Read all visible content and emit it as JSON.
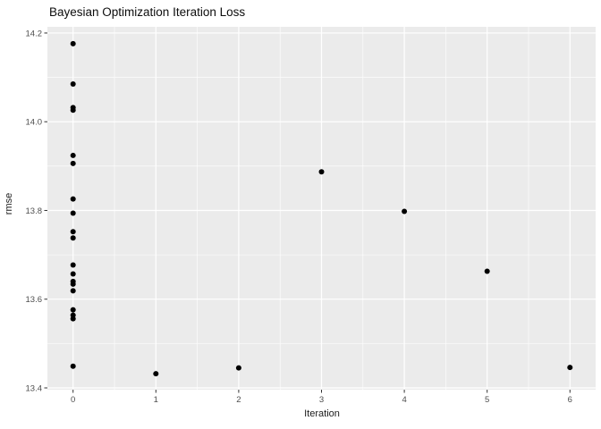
{
  "window": {
    "title": "Bayesian Optimization Iteration Loss"
  },
  "colors": {
    "background": "#ffffff",
    "panel_bg": "#ebebeb",
    "grid_major": "#ffffff",
    "grid_minor": "#ffffff",
    "point": "#000000",
    "tick_mark": "#333333",
    "tick_label": "#4d4d4d",
    "title": "#0d0d0d",
    "axis_title": "#1a1a1a"
  },
  "chart_data": {
    "type": "scatter",
    "title": "Bayesian Optimization Iteration Loss",
    "xlabel": "Iteration",
    "ylabel": "rmse",
    "xlim": [
      -0.31,
      6.31
    ],
    "ylim": [
      13.396,
      14.214
    ],
    "grid": true,
    "legend": "none",
    "x_ticks": [
      0,
      1,
      2,
      3,
      4,
      5,
      6
    ],
    "x_tick_labels": [
      "0",
      "1",
      "2",
      "3",
      "4",
      "5",
      "6"
    ],
    "x_minor_ticks": [
      0.5,
      1.5,
      2.5,
      3.5,
      4.5,
      5.5
    ],
    "y_ticks": [
      13.4,
      13.6,
      13.8,
      14.0,
      14.2
    ],
    "y_tick_labels": [
      "13.4",
      "13.6",
      "13.8",
      "14.0",
      "14.2"
    ],
    "y_minor_ticks": [
      13.5,
      13.7,
      13.9,
      14.1
    ],
    "points": [
      {
        "x": 0,
        "y": 14.176
      },
      {
        "x": 0,
        "y": 14.085
      },
      {
        "x": 0,
        "y": 14.032
      },
      {
        "x": 0,
        "y": 14.026
      },
      {
        "x": 0,
        "y": 13.924
      },
      {
        "x": 0,
        "y": 13.906
      },
      {
        "x": 0,
        "y": 13.826
      },
      {
        "x": 0,
        "y": 13.794
      },
      {
        "x": 0,
        "y": 13.752
      },
      {
        "x": 0,
        "y": 13.738
      },
      {
        "x": 0,
        "y": 13.677
      },
      {
        "x": 0,
        "y": 13.657
      },
      {
        "x": 0,
        "y": 13.64
      },
      {
        "x": 0,
        "y": 13.634
      },
      {
        "x": 0,
        "y": 13.619
      },
      {
        "x": 0,
        "y": 13.576
      },
      {
        "x": 0,
        "y": 13.564
      },
      {
        "x": 0,
        "y": 13.556
      },
      {
        "x": 0,
        "y": 13.449
      },
      {
        "x": 1,
        "y": 13.432
      },
      {
        "x": 2,
        "y": 13.445
      },
      {
        "x": 3,
        "y": 13.887
      },
      {
        "x": 4,
        "y": 13.798
      },
      {
        "x": 5,
        "y": 13.663
      },
      {
        "x": 6,
        "y": 13.446
      }
    ]
  }
}
